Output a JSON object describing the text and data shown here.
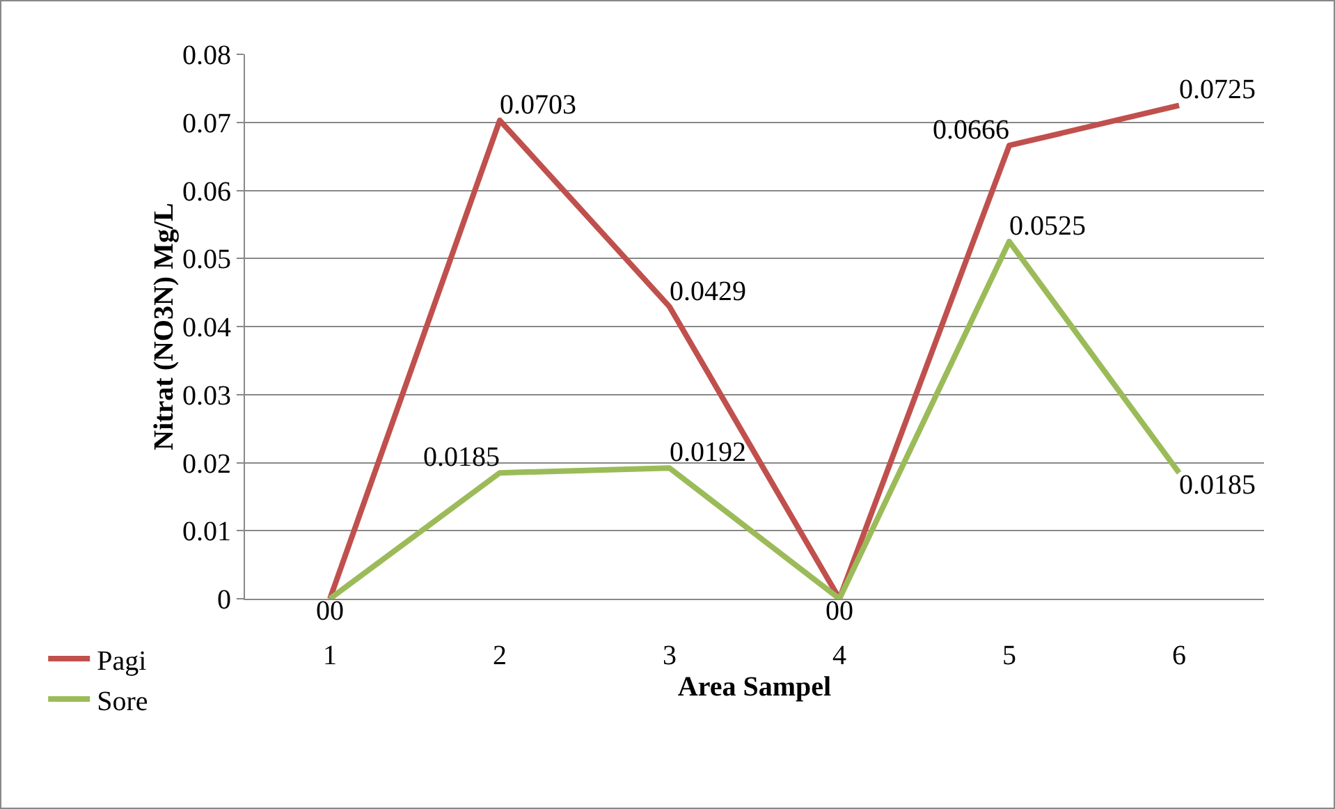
{
  "chart_data": {
    "type": "line",
    "xlabel": "Area Sampel",
    "ylabel": "Nitrat (NO3N) Mg/L",
    "categories": [
      "1",
      "2",
      "3",
      "4",
      "5",
      "6"
    ],
    "series": [
      {
        "name": "Pagi",
        "color": "#c0504d",
        "values": [
          0,
          0.0703,
          0.0429,
          0,
          0.0666,
          0.0725
        ]
      },
      {
        "name": "Sore",
        "color": "#9bbb59",
        "values": [
          0,
          0.0185,
          0.0192,
          0,
          0.0525,
          0.0185
        ]
      }
    ],
    "ylim": [
      0,
      0.08
    ],
    "yticks": [
      0,
      0.01,
      0.02,
      0.03,
      0.04,
      0.05,
      0.06,
      0.07,
      0.08
    ],
    "grid": "y",
    "legend": "bottom left",
    "data_labels": true,
    "marker": "none",
    "line_style": "solid"
  }
}
